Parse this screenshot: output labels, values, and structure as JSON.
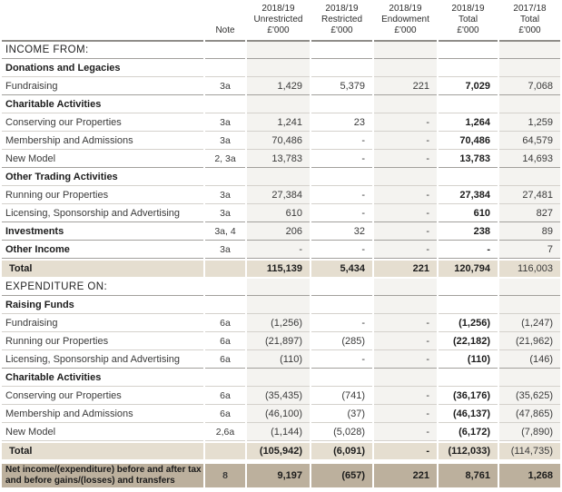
{
  "document": {
    "kind": "statement-of-financial-activities-table"
  },
  "colors": {
    "total_row_bg": "#e5ded0",
    "net_income_row_bg": "#bcb09d",
    "column_stripe_bg": "#f4f3f0",
    "text": "#262626"
  },
  "table": {
    "header": {
      "note_label": "Note",
      "columns": [
        {
          "year": "2018/19",
          "name": "Unrestricted",
          "unit": "£'000"
        },
        {
          "year": "2018/19",
          "name": "Restricted",
          "unit": "£'000"
        },
        {
          "year": "2018/19",
          "name": "Endowment",
          "unit": "£'000"
        },
        {
          "year": "2018/19",
          "name": "Total",
          "unit": "£'000"
        },
        {
          "year": "2017/18",
          "name": "Total",
          "unit": "£'000"
        }
      ]
    },
    "rows": [
      {
        "type": "section",
        "label": "INCOME FROM:"
      },
      {
        "type": "category",
        "label": "Donations and Legacies"
      },
      {
        "type": "data",
        "label": "Fundraising",
        "note": "3a",
        "values": [
          "1,429",
          "5,379",
          "221",
          "7,029",
          "7,068"
        ],
        "rule": "strong"
      },
      {
        "type": "category",
        "label": "Charitable Activities"
      },
      {
        "type": "data",
        "label": "Conserving our Properties",
        "note": "3a",
        "values": [
          "1,241",
          "23",
          "-",
          "1,264",
          "1,259"
        ]
      },
      {
        "type": "data",
        "label": "Membership and Admissions",
        "note": "3a",
        "values": [
          "70,486",
          "-",
          "-",
          "70,486",
          "64,579"
        ]
      },
      {
        "type": "data",
        "label": "New Model",
        "note": "2, 3a",
        "values": [
          "13,783",
          "-",
          "-",
          "13,783",
          "14,693"
        ],
        "rule": "strong"
      },
      {
        "type": "category",
        "label": "Other Trading Activities"
      },
      {
        "type": "data",
        "label": "Running our Properties",
        "note": "3a",
        "values": [
          "27,384",
          "-",
          "-",
          "27,384",
          "27,481"
        ]
      },
      {
        "type": "data",
        "label": "Licensing, Sponsorship and Advertising",
        "note": "3a",
        "values": [
          "610",
          "-",
          "-",
          "610",
          "827"
        ],
        "rule": "strong"
      },
      {
        "type": "data",
        "label": "Investments",
        "note": "3a, 4",
        "values": [
          "206",
          "32",
          "-",
          "238",
          "89"
        ],
        "bold_label": true,
        "rule": "strong"
      },
      {
        "type": "data",
        "label": "Other Income",
        "note": "3a",
        "values": [
          "-",
          "-",
          "-",
          "-",
          "7"
        ],
        "bold_label": true,
        "rule": "strong"
      },
      {
        "type": "total",
        "label": "Total",
        "note": "",
        "values": [
          "115,139",
          "5,434",
          "221",
          "120,794",
          "116,003"
        ]
      },
      {
        "type": "section",
        "label": "EXPENDITURE ON:"
      },
      {
        "type": "category",
        "label": "Raising Funds"
      },
      {
        "type": "data",
        "label": "Fundraising",
        "note": "6a",
        "values": [
          "(1,256)",
          "-",
          "-",
          "(1,256)",
          "(1,247)"
        ]
      },
      {
        "type": "data",
        "label": "Running our Properties",
        "note": "6a",
        "values": [
          "(21,897)",
          "(285)",
          "-",
          "(22,182)",
          "(21,962)"
        ]
      },
      {
        "type": "data",
        "label": "Licensing, Sponsorship and Advertising",
        "note": "6a",
        "values": [
          "(110)",
          "-",
          "-",
          "(110)",
          "(146)"
        ],
        "rule": "strong"
      },
      {
        "type": "category",
        "label": "Charitable Activities"
      },
      {
        "type": "data",
        "label": "Conserving our Properties",
        "note": "6a",
        "values": [
          "(35,435)",
          "(741)",
          "-",
          "(36,176)",
          "(35,625)"
        ]
      },
      {
        "type": "data",
        "label": "Membership and Admissions",
        "note": "6a",
        "values": [
          "(46,100)",
          "(37)",
          "-",
          "(46,137)",
          "(47,865)"
        ]
      },
      {
        "type": "data",
        "label": "New Model",
        "note": "2,6a",
        "values": [
          "(1,144)",
          "(5,028)",
          "-",
          "(6,172)",
          "(7,890)"
        ]
      },
      {
        "type": "total",
        "label": "Total",
        "note": "",
        "values": [
          "(105,942)",
          "(6,091)",
          "-",
          "(112,033)",
          "(114,735)"
        ]
      },
      {
        "type": "net",
        "label": "Net income/(expenditure) before and after tax and before gains/(losses) and transfers",
        "note": "8",
        "values": [
          "9,197",
          "(657)",
          "221",
          "8,761",
          "1,268"
        ]
      }
    ]
  }
}
